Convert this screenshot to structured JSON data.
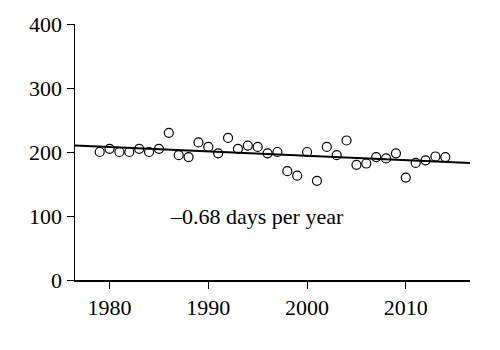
{
  "chart_data": {
    "type": "scatter",
    "annotations": [
      "–0.68 days per year"
    ],
    "xlim": [
      1976.5,
      2016.5
    ],
    "xticks": [
      1980,
      1990,
      2000,
      2010
    ],
    "ylim": [
      0,
      400
    ],
    "yticks": [
      0,
      100,
      200,
      300,
      400
    ],
    "grid": false,
    "series": [
      {
        "type": "scatter",
        "marker": "circle-open",
        "color": "#000000",
        "x": [
          1979,
          1980,
          1981,
          1982,
          1983,
          1984,
          1985,
          1986,
          1987,
          1988,
          1989,
          1990,
          1991,
          1992,
          1993,
          1994,
          1995,
          1996,
          1997,
          1998,
          1999,
          2000,
          2001,
          2002,
          2003,
          2004,
          2005,
          2006,
          2007,
          2008,
          2009,
          2010,
          2011,
          2012,
          2013,
          2014
        ],
        "values": [
          200,
          205,
          200,
          200,
          205,
          200,
          205,
          230,
          195,
          192,
          215,
          208,
          198,
          222,
          205,
          210,
          208,
          198,
          200,
          170,
          163,
          200,
          155,
          208,
          195,
          218,
          180,
          182,
          192,
          190,
          198,
          160,
          183,
          187,
          193,
          192
        ]
      },
      {
        "type": "line",
        "line_style": "solid",
        "color": "#000000",
        "x": [
          1976.5,
          2016.5
        ],
        "values": [
          210,
          183
        ]
      }
    ]
  }
}
